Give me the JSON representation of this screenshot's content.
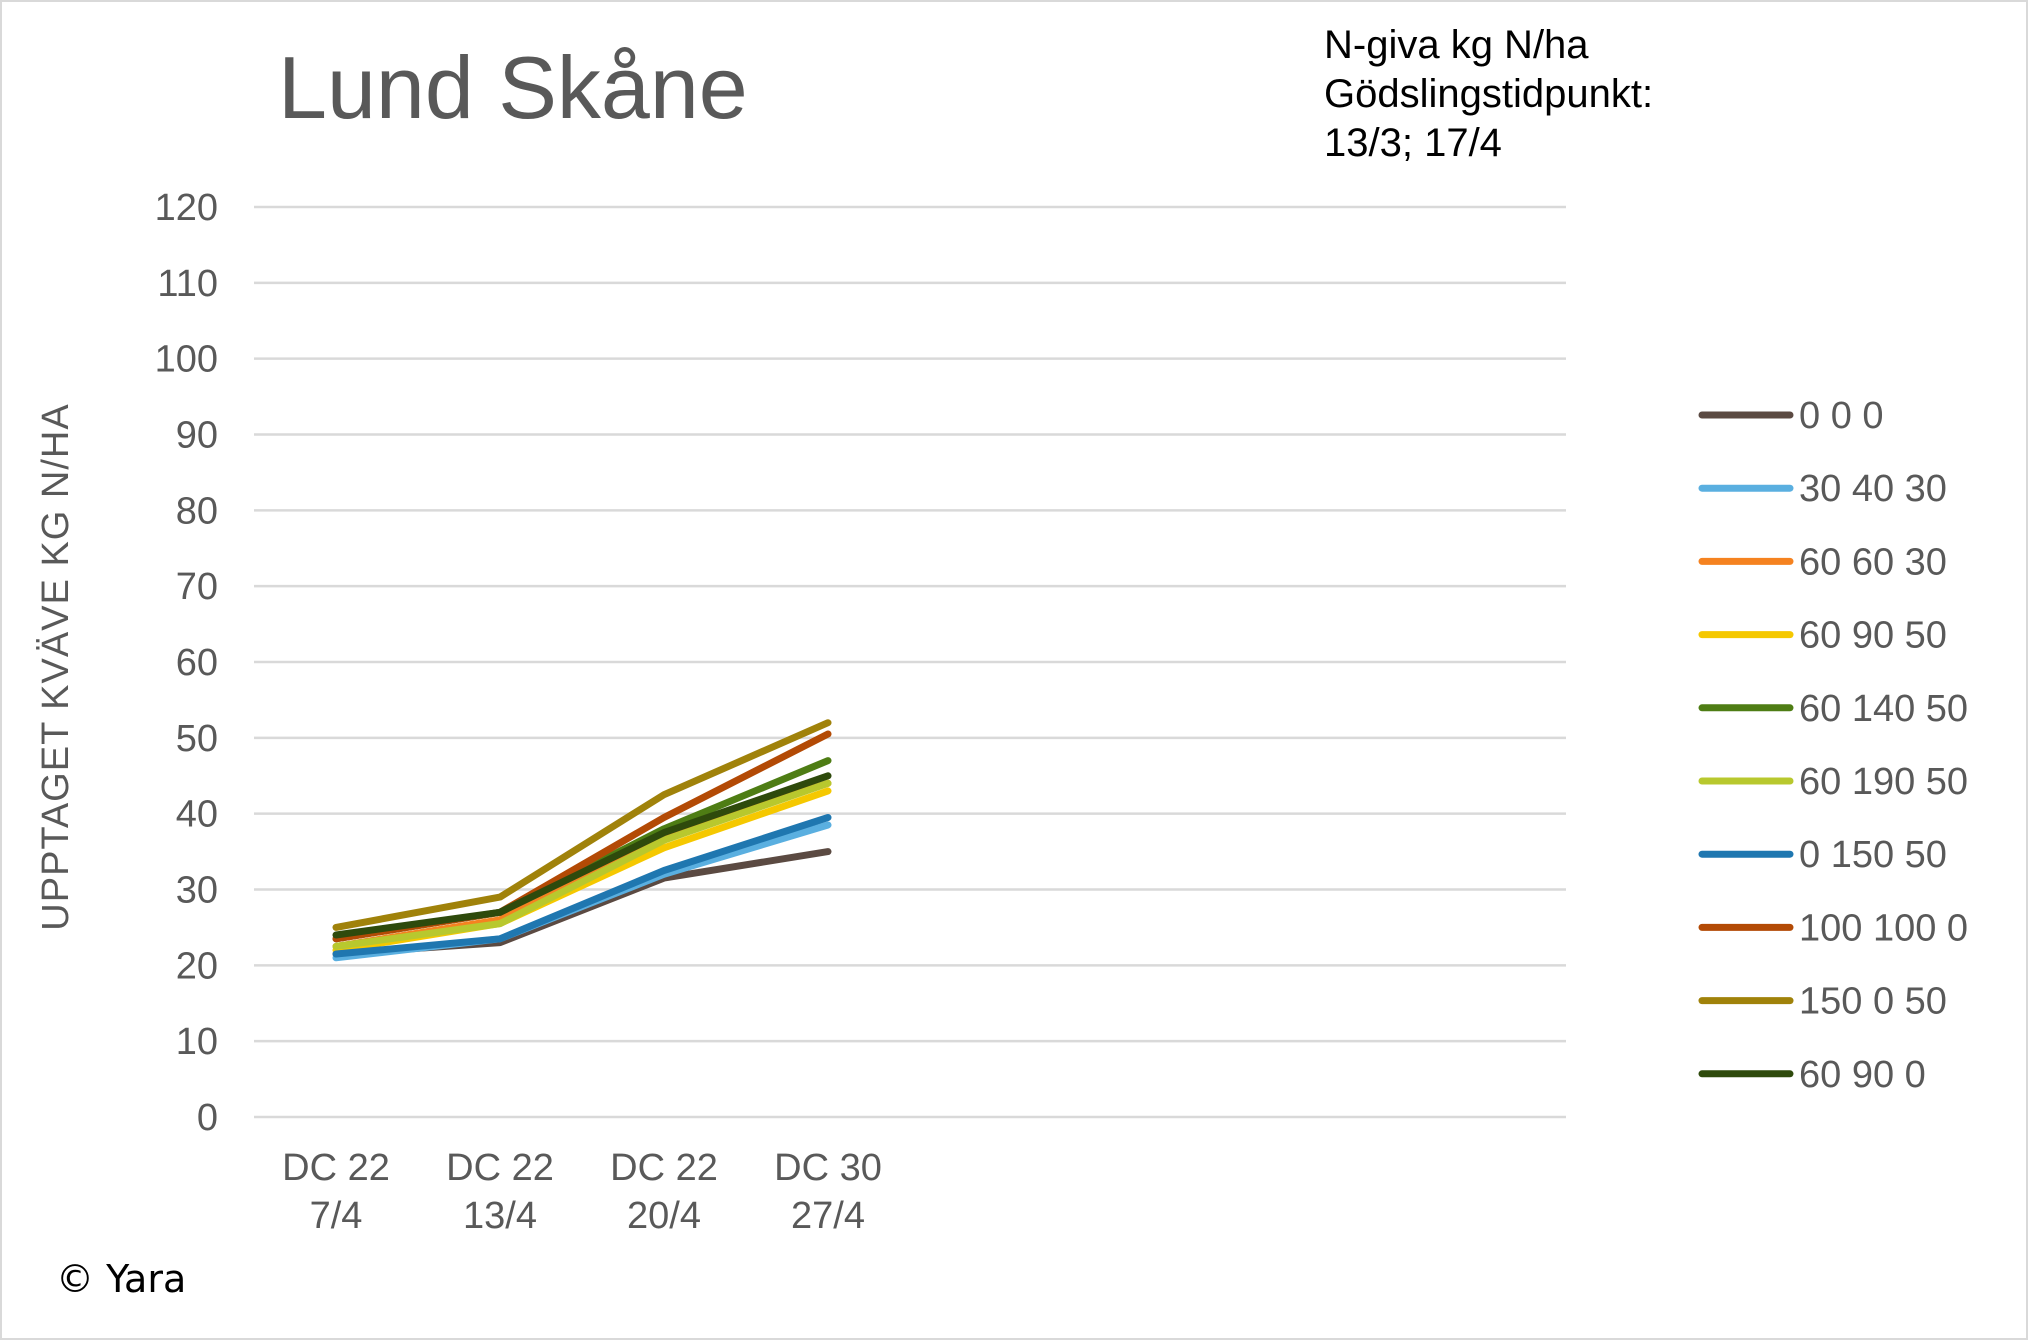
{
  "chart_data": {
    "type": "line",
    "title": "Lund Skåne",
    "annotation_lines": [
      "N-giva kg N/ha",
      "Gödslingstidpunkt:",
      "13/3; 17/4"
    ],
    "ylabel": "UPPTAGET KVÄVE KG N/HA",
    "xlabel": "",
    "ylim": [
      0,
      120
    ],
    "yticks": [
      "0",
      "10",
      "20",
      "30",
      "40",
      "50",
      "60",
      "70",
      "80",
      "90",
      "100",
      "110",
      "120"
    ],
    "grid": true,
    "legend_position": "right",
    "category_count": 8,
    "categories": [
      [
        "DC 22",
        "7/4"
      ],
      [
        "DC 22",
        "13/4"
      ],
      [
        "DC 22",
        "20/4"
      ],
      [
        "DC 30",
        "27/4"
      ]
    ],
    "series": [
      {
        "name": "0 0 0",
        "color": "#5b4a42",
        "values": [
          21.5,
          23,
          31.5,
          35
        ]
      },
      {
        "name": "30 40 30",
        "color": "#5aafe0",
        "values": [
          21,
          23.5,
          32,
          38.5
        ]
      },
      {
        "name": "60 60 30",
        "color": "#f58220",
        "values": [
          22.5,
          26,
          37,
          44
        ]
      },
      {
        "name": "60 90 50",
        "color": "#f5c800",
        "values": [
          22,
          25.5,
          35.5,
          43
        ]
      },
      {
        "name": "60 140 50",
        "color": "#4e7d14",
        "values": [
          23.5,
          27,
          38,
          47
        ]
      },
      {
        "name": "60 190 50",
        "color": "#b8c82e",
        "values": [
          22.5,
          25.5,
          36.5,
          44
        ]
      },
      {
        "name": "0 150 50",
        "color": "#1f77b0",
        "values": [
          21.5,
          23.5,
          32.5,
          39.5
        ]
      },
      {
        "name": "100 100 0",
        "color": "#b34a05",
        "values": [
          23.5,
          27,
          39.5,
          50.5
        ]
      },
      {
        "name": "150 0 50",
        "color": "#a0820a",
        "values": [
          25,
          29,
          42.5,
          52
        ]
      },
      {
        "name": "60 90 0",
        "color": "#2e4a0c",
        "values": [
          24,
          27,
          37.5,
          45
        ]
      }
    ]
  },
  "copyright": "© Yara",
  "colors": {
    "grid": "#d9d9d9",
    "text": "#595959",
    "border": "#d9d9d9"
  }
}
